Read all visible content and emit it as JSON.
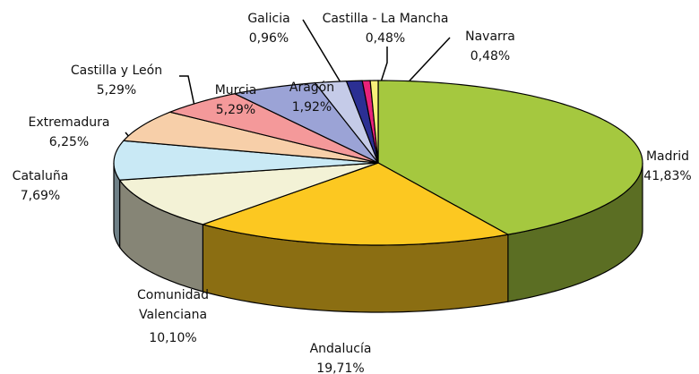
{
  "chart_data": {
    "type": "pie",
    "categories": [
      "Madrid",
      "Andalucía",
      "Comunidad Valenciana",
      "Cataluña",
      "Extremadura",
      "Castilla y León",
      "Murcia",
      "Aragón",
      "Galicia",
      "Castilla - La Mancha",
      "Navarra"
    ],
    "values": [
      41.83,
      19.71,
      10.1,
      7.69,
      6.25,
      5.29,
      5.29,
      1.92,
      0.96,
      0.48,
      0.48
    ],
    "value_labels": [
      "41,83%",
      "19,71%",
      "10,10%",
      "7,69%",
      "6,25%",
      "5,29%",
      "5,29%",
      "1,92%",
      "0,96%",
      "0,48%",
      "0,48%"
    ],
    "colors": [
      "#a5c83f",
      "#fcc821",
      "#f3f2d6",
      "#c9e9f5",
      "#f7cfa9",
      "#f4999a",
      "#9ba3d6",
      "#c5cbe8",
      "#2b2f93",
      "#e8227a",
      "#f8f07a"
    ]
  }
}
